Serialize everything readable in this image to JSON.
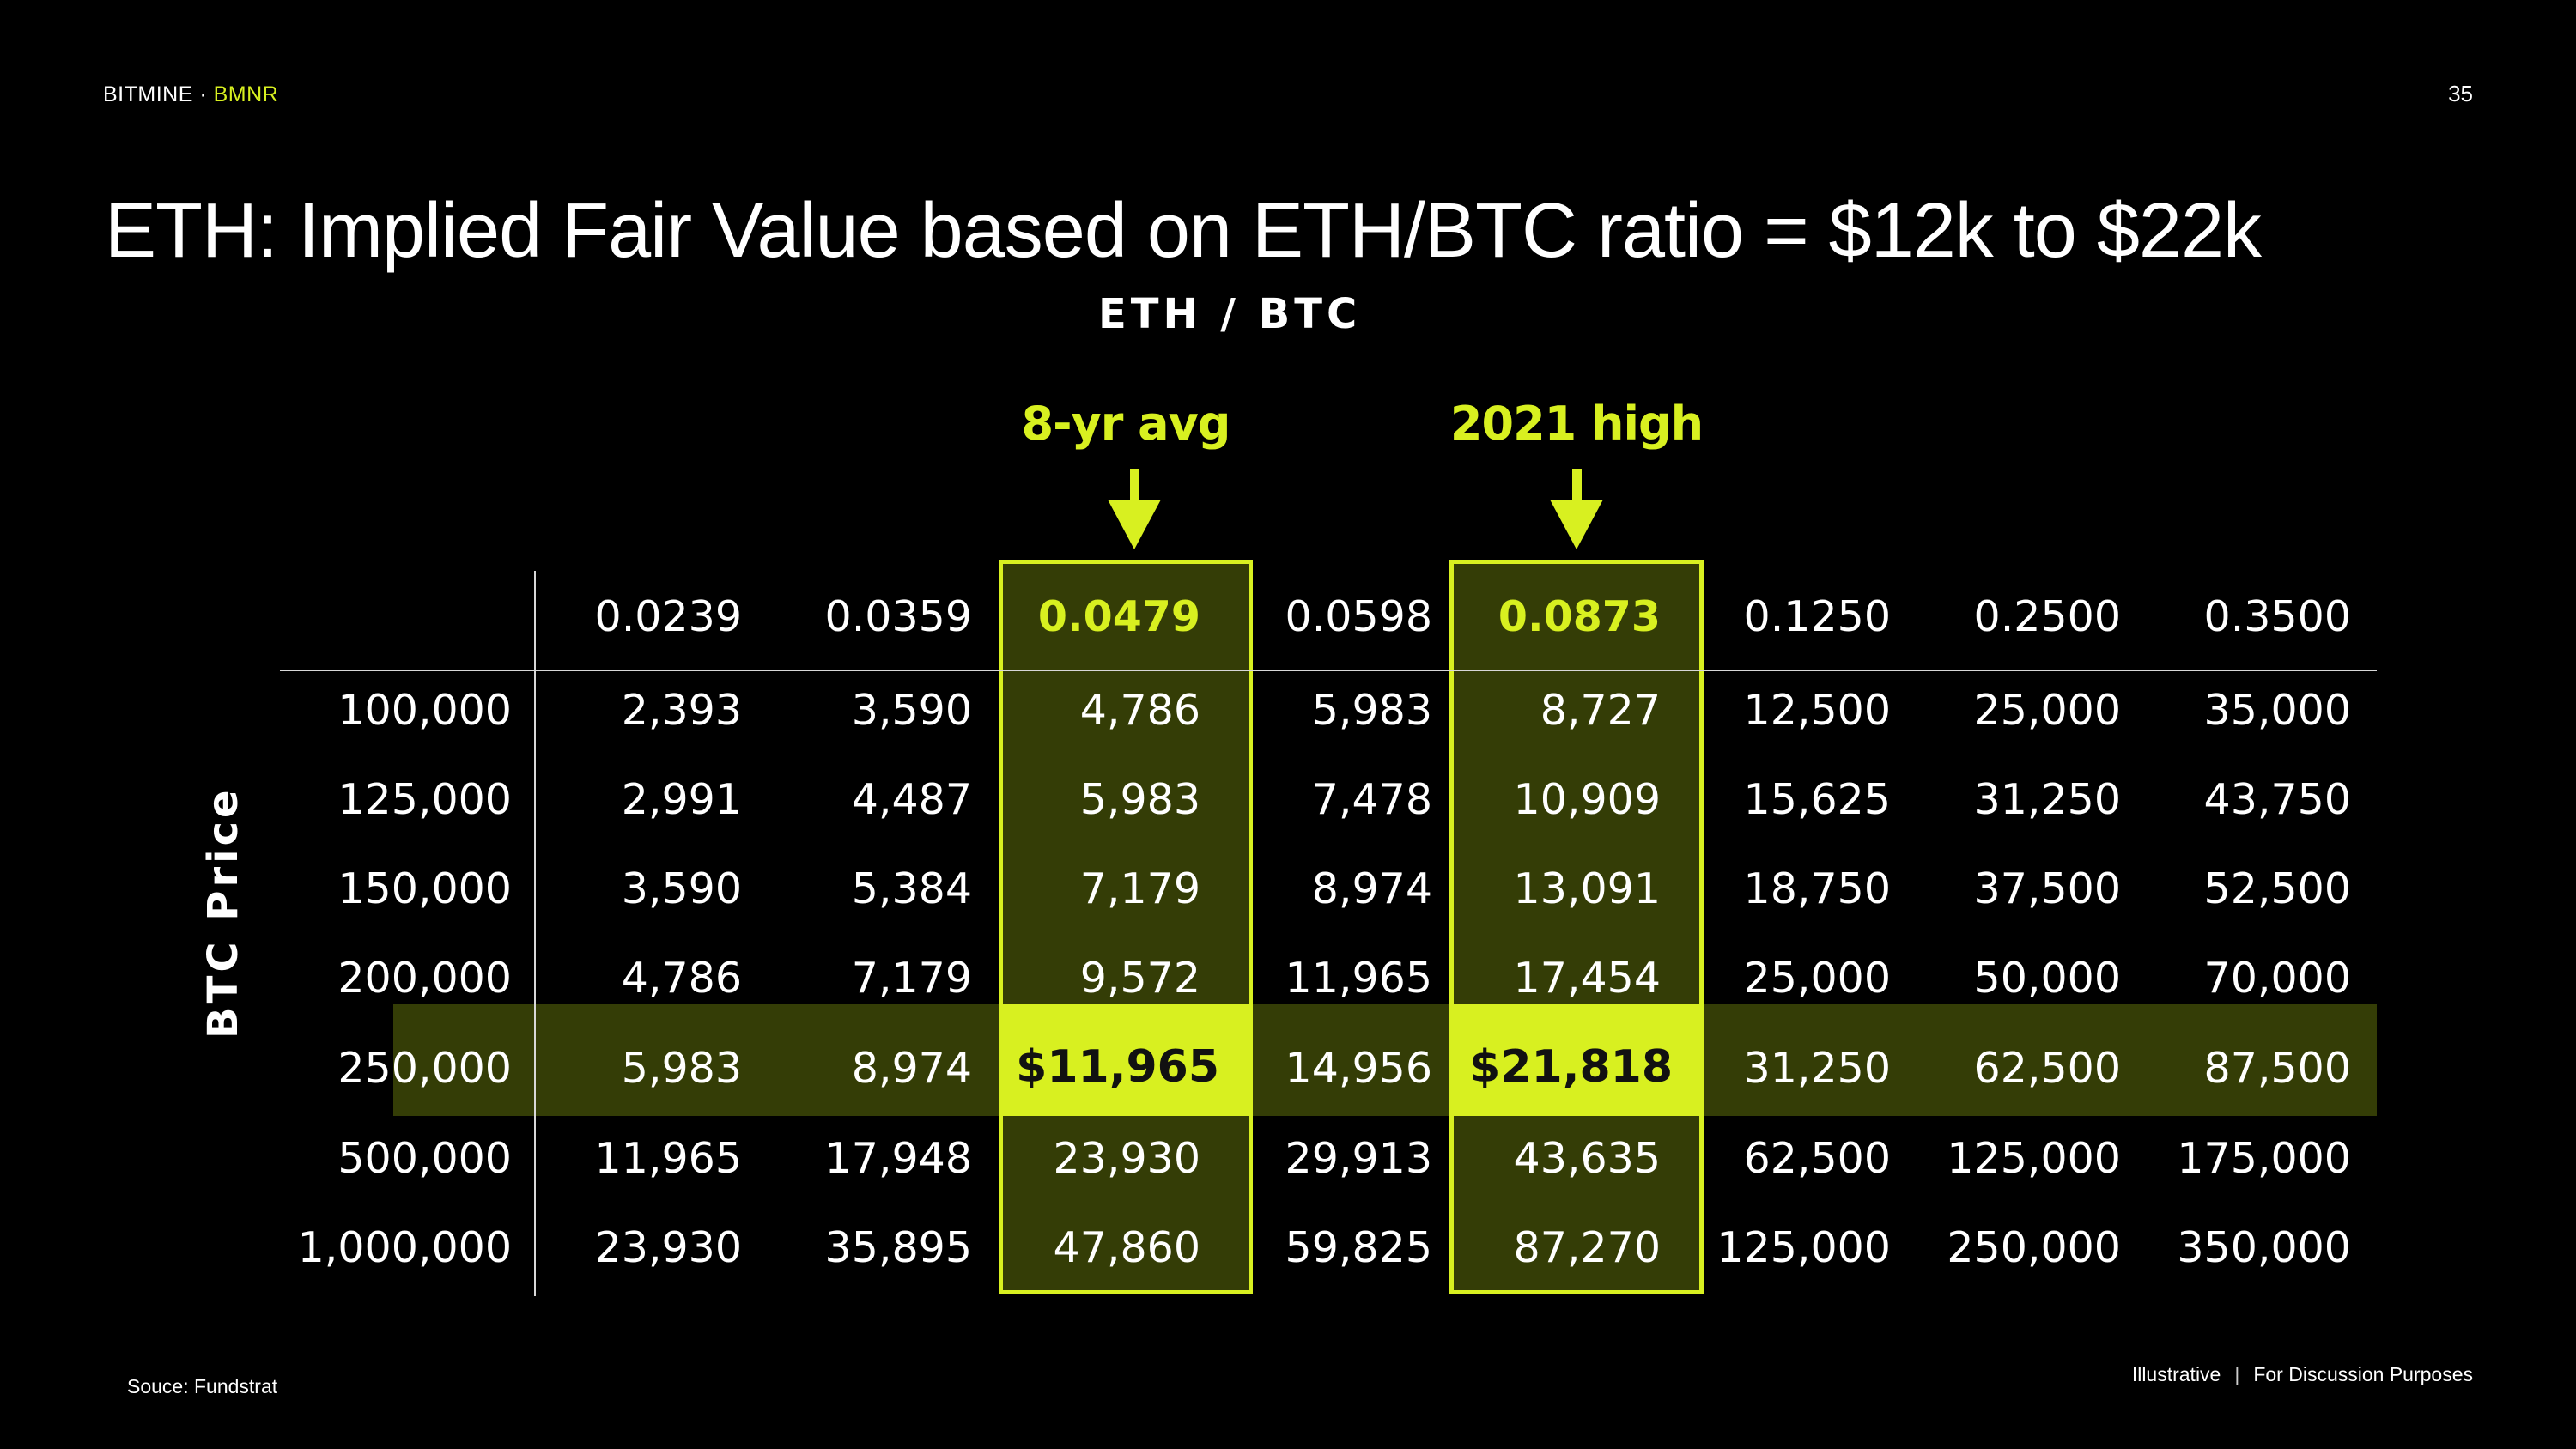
{
  "header": {
    "brand": "BITMINE",
    "separator": " · ",
    "ticker": "BMNR",
    "page_number": "35"
  },
  "title": "ETH: Implied Fair Value based on ETH/BTC ratio = $12k to $22k",
  "column_axis_label": "ETH / BTC",
  "row_axis_label": "BTC Price",
  "callouts": [
    {
      "label": "8-yr avg"
    },
    {
      "label": "2021 high"
    }
  ],
  "table": {
    "columns": [
      "0.0239",
      "0.0359",
      "0.0479",
      "0.0598",
      "0.0873",
      "0.1250",
      "0.2500",
      "0.3500"
    ],
    "rows": [
      {
        "btc": "100,000",
        "values": [
          "2,393",
          "3,590",
          "4,786",
          "5,983",
          "8,727",
          "12,500",
          "25,000",
          "35,000"
        ]
      },
      {
        "btc": "125,000",
        "values": [
          "2,991",
          "4,487",
          "5,983",
          "7,478",
          "10,909",
          "15,625",
          "31,250",
          "43,750"
        ]
      },
      {
        "btc": "150,000",
        "values": [
          "3,590",
          "5,384",
          "7,179",
          "8,974",
          "13,091",
          "18,750",
          "37,500",
          "52,500"
        ]
      },
      {
        "btc": "200,000",
        "values": [
          "4,786",
          "7,179",
          "9,572",
          "11,965",
          "17,454",
          "25,000",
          "50,000",
          "70,000"
        ]
      },
      {
        "btc": "250,000",
        "values": [
          "5,983",
          "8,974",
          "$11,965",
          "14,956",
          "$21,818",
          "31,250",
          "62,500",
          "87,500"
        ]
      },
      {
        "btc": "500,000",
        "values": [
          "11,965",
          "17,948",
          "23,930",
          "29,913",
          "43,635",
          "62,500",
          "125,000",
          "175,000"
        ]
      },
      {
        "btc": "1,000,000",
        "values": [
          "23,930",
          "35,895",
          "47,860",
          "59,825",
          "87,270",
          "125,000",
          "250,000",
          "350,000"
        ]
      }
    ]
  },
  "colors": {
    "accent": "#d8f020",
    "highlight_band": "#343d06",
    "background": "#000000"
  },
  "footer": {
    "source": "Souce: Fundstrat",
    "left": "Illustrative",
    "divider": "|",
    "right": "For Discussion Purposes"
  }
}
